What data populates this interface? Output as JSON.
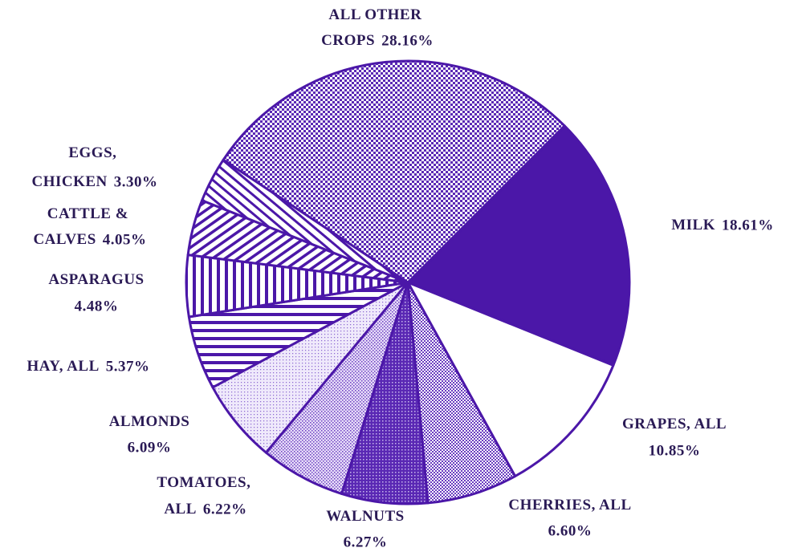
{
  "chart_data": {
    "type": "pie",
    "categories": [
      "MILK",
      "GRAPES, ALL",
      "CHERRIES, ALL",
      "WALNUTS",
      "TOMATOES, ALL",
      "ALMONDS",
      "HAY, ALL",
      "ASPARAGUS",
      "CATTLE & CALVES",
      "EGGS, CHICKEN",
      "ALL OTHER CROPS"
    ],
    "values": [
      18.61,
      10.85,
      6.6,
      6.27,
      6.22,
      6.09,
      5.37,
      4.48,
      4.05,
      3.3,
      28.16
    ],
    "value_labels": [
      "18.61%",
      "10.85%",
      "6.60%",
      "6.27%",
      "6.22%",
      "6.09%",
      "5.37%",
      "4.48%",
      "4.05%",
      "3.30%",
      "28.16%"
    ],
    "color": "#4b17a8"
  }
}
